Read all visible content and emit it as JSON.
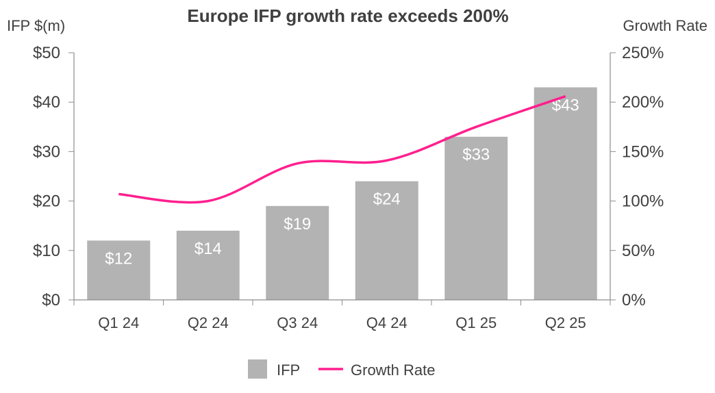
{
  "chart_data": {
    "type": "bar",
    "title": "Europe IFP growth rate exceeds 200%",
    "ylabel": "IFP $(m)",
    "y2label": "Growth Rate",
    "categories": [
      "Q1 24",
      "Q2 24",
      "Q3 24",
      "Q4 24",
      "Q1 25",
      "Q2 25"
    ],
    "ylim": [
      0,
      50
    ],
    "y2lim": [
      0,
      250
    ],
    "yticks": [
      "$0",
      "$10",
      "$20",
      "$30",
      "$40",
      "$50"
    ],
    "y2ticks": [
      "0%",
      "50%",
      "100%",
      "150%",
      "200%",
      "250%"
    ],
    "series": [
      {
        "name": "IFP",
        "type": "bar",
        "axis": "left",
        "values": [
          12,
          14,
          19,
          24,
          33,
          43
        ],
        "labels": [
          "$12",
          "$14",
          "$19",
          "$24",
          "$33",
          "$43"
        ],
        "color": "#b3b3b3"
      },
      {
        "name": "Growth Rate",
        "type": "line",
        "axis": "right",
        "values": [
          107,
          100,
          138,
          141,
          175,
          206
        ],
        "color": "#ff1f8e"
      }
    ],
    "legend": [
      "IFP",
      "Growth Rate"
    ],
    "legend_position": "bottom",
    "grid": false
  }
}
